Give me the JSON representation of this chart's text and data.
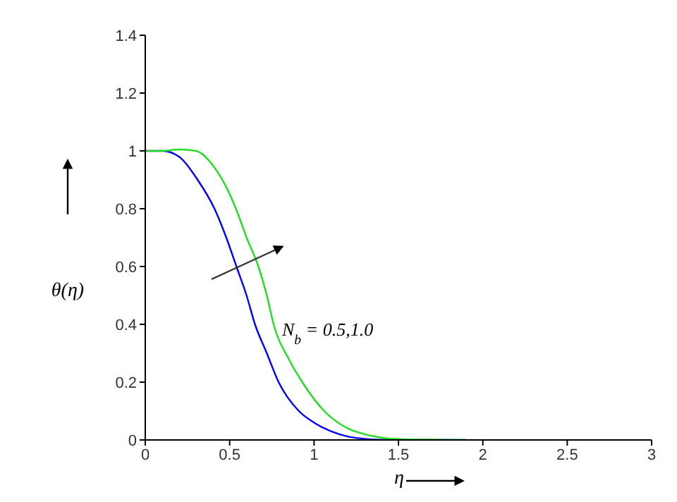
{
  "chart_data": {
    "type": "line",
    "xlabel": "η",
    "ylabel": "θ(η)",
    "annotations": [
      "N$_{b}$ = 0.5,1.0"
    ],
    "xlim": [
      0,
      3
    ],
    "xticks": [
      0,
      0.5,
      1,
      1.5,
      2,
      2.5,
      3
    ],
    "ylim": [
      0,
      1.4
    ],
    "yticks": [
      0,
      0.2,
      0.4,
      0.6,
      0.8,
      1,
      1.2,
      1.4
    ],
    "marker": "none",
    "line_style": "solid",
    "series": [
      {
        "color": "#0000ff",
        "x": [
          0,
          0.1,
          0.2,
          0.31,
          0.41,
          0.48,
          0.54,
          0.6,
          0.65,
          0.72,
          0.79,
          0.91,
          1.0,
          1.1,
          1.2,
          1.3,
          1.4,
          1.9
        ],
        "values": [
          1,
          1,
          0.98,
          0.9,
          0.8,
          0.7,
          0.6,
          0.5,
          0.4,
          0.3,
          0.2,
          0.1,
          0.06,
          0.03,
          0.012,
          0.004,
          0.001,
          0
        ]
      },
      {
        "color": "#22dd22",
        "x": [
          0,
          0.1,
          0.2,
          0.3,
          0.4,
          0.5,
          0.55,
          0.6,
          0.67,
          0.72,
          0.76,
          0.85,
          0.93,
          1.06,
          1.2,
          1.3,
          1.4,
          1.5,
          1.9
        ],
        "values": [
          1,
          1,
          1.005,
          1,
          0.95,
          0.85,
          0.78,
          0.7,
          0.6,
          0.5,
          0.4,
          0.28,
          0.2,
          0.1,
          0.04,
          0.02,
          0.008,
          0.003,
          0
        ]
      }
    ]
  }
}
